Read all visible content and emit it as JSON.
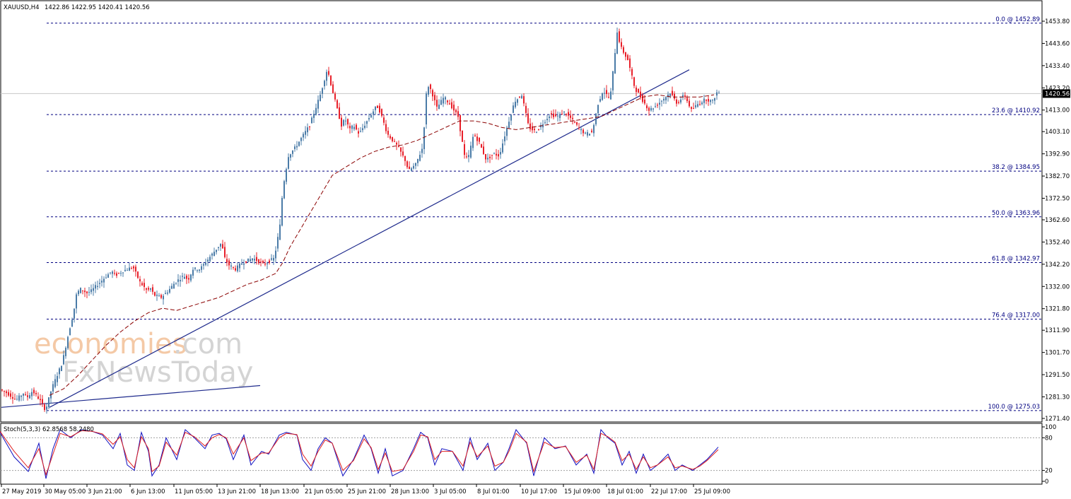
{
  "header": {
    "symbol": "XAUUSD,H4",
    "ohlc": "1422.86 1422.95 1420.41 1420.56"
  },
  "watermark": {
    "brand_main": "economies",
    "brand_suffix": ".com",
    "brand_sub": "FxNewsToday"
  },
  "colors": {
    "bull": "#4a7ba7",
    "bear": "#e8202a",
    "fib": "#000080",
    "trend": "#1e2a8c",
    "ma": "#8b0000",
    "stoch_main": "#1010c0",
    "stoch_signal": "#e02020"
  },
  "chart_data": [
    {
      "type": "candlestick",
      "title": "XAUUSD,H4",
      "ylim": [
        1270.0,
        1458.0
      ],
      "y_ticks": [
        "1453.80",
        "1443.60",
        "1433.40",
        "1423.20",
        "1413.00",
        "1403.10",
        "1392.90",
        "1382.70",
        "1372.50",
        "1362.60",
        "1352.40",
        "1342.20",
        "1332.00",
        "1321.80",
        "1311.90",
        "1301.70",
        "1291.50",
        "1281.30",
        "1271.40"
      ],
      "current_price": "1420.56",
      "x_ticks": [
        "27 May 2019",
        "30 May 05:00",
        "3 Jun 21:00",
        "6 Jun 13:00",
        "11 Jun 05:00",
        "13 Jun 21:00",
        "18 Jun 13:00",
        "21 Jun 05:00",
        "25 Jun 21:00",
        "28 Jun 13:00",
        "3 Jul 05:00",
        "8 Jul 01:00",
        "10 Jul 17:00",
        "15 Jul 09:00",
        "18 Jul 01:00",
        "22 Jul 17:00",
        "25 Jul 09:00"
      ],
      "fib_levels": [
        {
          "label": "0.0 @ 1452.89",
          "value": 1452.89
        },
        {
          "label": "23.6 @ 1410.92",
          "value": 1410.92
        },
        {
          "label": "38.2 @ 1384.95",
          "value": 1384.95
        },
        {
          "label": "50.0 @ 1363.96",
          "value": 1363.96
        },
        {
          "label": "61.8 @ 1342.97",
          "value": 1342.97
        },
        {
          "label": "76.4 @ 1317.00",
          "value": 1317.0
        },
        {
          "label": "100.0 @ 1275.03",
          "value": 1275.03
        }
      ],
      "path_x": [
        0,
        12,
        25,
        35,
        40,
        48,
        58,
        65,
        68,
        75,
        90,
        100,
        106,
        110,
        115,
        120,
        125,
        131,
        150,
        160,
        165,
        175,
        190,
        200,
        210,
        215,
        220,
        230,
        240,
        250,
        262,
        268,
        275,
        285,
        300,
        310,
        315,
        320,
        325,
        335,
        345,
        360,
        375,
        390,
        398,
        402,
        410,
        420,
        430,
        440,
        455,
        465,
        470,
        480,
        485,
        490,
        497,
        502,
        510,
        525,
        535,
        540,
        550,
        565,
        575,
        580,
        590,
        600,
        606,
        612,
        620,
        630,
        640,
        650,
        660,
        665,
        672,
        680,
        690,
        700,
        708,
        720,
        730,
        740,
        750,
        760,
        770,
        780,
        790,
        800,
        810,
        820,
        830,
        840,
        848,
        855,
        865,
        875,
        880,
        890,
        900,
        910,
        920,
        930,
        940,
        950,
        960,
        970,
        980,
        990,
        1000,
        1010,
        1016
      ],
      "path_y": [
        1285,
        1283,
        1280,
        1283,
        1281,
        1284,
        1280,
        1276,
        1277,
        1285,
        1297,
        1312,
        1320,
        1328,
        1331,
        1330,
        1329,
        1330,
        1336,
        1339,
        1337,
        1339,
        1341,
        1334,
        1330,
        1331,
        1328,
        1327,
        1330,
        1334,
        1337,
        1335,
        1340,
        1340,
        1346,
        1350,
        1352,
        1345,
        1342,
        1340,
        1343,
        1345,
        1342,
        1345,
        1360,
        1377,
        1392,
        1396,
        1401,
        1406,
        1420,
        1432,
        1425,
        1412,
        1406,
        1409,
        1404,
        1406,
        1402,
        1410,
        1415,
        1412,
        1402,
        1396,
        1390,
        1385,
        1388,
        1396,
        1425,
        1422,
        1414,
        1419,
        1415,
        1410,
        1390,
        1392,
        1402,
        1398,
        1390,
        1393,
        1392,
        1406,
        1417,
        1420,
        1405,
        1403,
        1407,
        1411,
        1410,
        1412,
        1409,
        1405,
        1402,
        1403,
        1416,
        1422,
        1418,
        1449,
        1442,
        1436,
        1423,
        1418,
        1413,
        1415,
        1418,
        1421,
        1416,
        1420,
        1413,
        1416,
        1418,
        1417,
        1421
      ],
      "ma_x": [
        70,
        90,
        110,
        130,
        150,
        170,
        190,
        210,
        230,
        250,
        270,
        290,
        310,
        330,
        350,
        370,
        390,
        400,
        410,
        430,
        450,
        470,
        490,
        510,
        530,
        550,
        570,
        590,
        610,
        630,
        650,
        670,
        690,
        710,
        730,
        750,
        770,
        790,
        810,
        830,
        850,
        870,
        890,
        910,
        930,
        950,
        970,
        990,
        1010
      ],
      "ma_y": [
        1282,
        1285,
        1291,
        1298,
        1305,
        1311,
        1316,
        1320,
        1322,
        1321,
        1323,
        1325,
        1327,
        1330,
        1333,
        1335,
        1338,
        1343,
        1350,
        1361,
        1372,
        1383,
        1387,
        1391,
        1394,
        1396,
        1397,
        1399,
        1402,
        1405,
        1408,
        1408,
        1407,
        1405,
        1404,
        1405,
        1406,
        1407,
        1408,
        1409,
        1410,
        1413,
        1416,
        1419,
        1420,
        1419,
        1419,
        1419,
        1420
      ],
      "trendlines": [
        {
          "x1": 70,
          "y1": 1276.5,
          "x2": 975,
          "y2": 1431.5
        },
        {
          "x1": 2,
          "y1": 1276.5,
          "x2": 368,
          "y2": 1286.5
        }
      ]
    },
    {
      "type": "line",
      "title": "Stoch(5,3,3) 62.8568 58.2480",
      "ylim": [
        0,
        100
      ],
      "y_ticks": [
        "100",
        "80",
        "20",
        "0"
      ],
      "levels": [
        80,
        20
      ],
      "series": [
        {
          "name": "main",
          "x": [
            0,
            20,
            40,
            55,
            65,
            75,
            85,
            100,
            115,
            130,
            145,
            160,
            170,
            180,
            190,
            200,
            210,
            215,
            225,
            235,
            250,
            262,
            275,
            290,
            300,
            310,
            320,
            330,
            345,
            355,
            370,
            380,
            395,
            405,
            420,
            428,
            440,
            450,
            460,
            470,
            485,
            500,
            515,
            525,
            535,
            545,
            555,
            570,
            585,
            595,
            605,
            615,
            625,
            640,
            655,
            665,
            675,
            690,
            700,
            712,
            720,
            730,
            745,
            755,
            770,
            785,
            800,
            815,
            830,
            840,
            850,
            860,
            870,
            880,
            890,
            900,
            910,
            920,
            930,
            945,
            955,
            965,
            980,
            990,
            1000,
            1016
          ],
          "y": [
            90,
            45,
            18,
            70,
            5,
            60,
            95,
            80,
            95,
            92,
            85,
            60,
            88,
            30,
            20,
            90,
            55,
            10,
            30,
            80,
            40,
            95,
            80,
            60,
            85,
            88,
            78,
            40,
            85,
            30,
            55,
            50,
            85,
            90,
            85,
            40,
            20,
            60,
            80,
            70,
            10,
            40,
            85,
            60,
            15,
            60,
            10,
            20,
            60,
            90,
            80,
            30,
            60,
            55,
            20,
            80,
            40,
            70,
            20,
            35,
            60,
            95,
            70,
            10,
            80,
            60,
            65,
            30,
            50,
            15,
            95,
            80,
            70,
            30,
            55,
            15,
            50,
            20,
            30,
            50,
            20,
            30,
            20,
            30,
            40,
            62.86
          ]
        },
        {
          "name": "signal",
          "x": [
            0,
            20,
            40,
            55,
            65,
            75,
            85,
            100,
            115,
            130,
            145,
            160,
            170,
            180,
            190,
            200,
            210,
            215,
            225,
            235,
            250,
            262,
            275,
            290,
            300,
            310,
            320,
            330,
            345,
            355,
            370,
            380,
            395,
            405,
            420,
            428,
            440,
            450,
            460,
            470,
            485,
            500,
            515,
            525,
            535,
            545,
            555,
            570,
            585,
            595,
            605,
            615,
            625,
            640,
            655,
            665,
            675,
            690,
            700,
            712,
            720,
            730,
            745,
            755,
            770,
            785,
            800,
            815,
            830,
            840,
            850,
            860,
            870,
            880,
            890,
            900,
            910,
            920,
            930,
            945,
            955,
            965,
            980,
            990,
            1000,
            1016
          ],
          "y": [
            92,
            55,
            25,
            60,
            12,
            50,
            88,
            82,
            93,
            92,
            87,
            68,
            82,
            40,
            25,
            82,
            60,
            18,
            28,
            72,
            48,
            90,
            82,
            65,
            80,
            86,
            80,
            50,
            80,
            38,
            52,
            52,
            80,
            88,
            86,
            50,
            28,
            55,
            76,
            70,
            20,
            38,
            78,
            62,
            22,
            52,
            18,
            22,
            55,
            85,
            82,
            40,
            55,
            55,
            28,
            72,
            45,
            65,
            28,
            35,
            55,
            88,
            72,
            18,
            72,
            62,
            64,
            35,
            48,
            22,
            88,
            82,
            72,
            38,
            50,
            22,
            45,
            25,
            30,
            45,
            25,
            28,
            22,
            28,
            38,
            58.25
          ]
        }
      ]
    }
  ]
}
